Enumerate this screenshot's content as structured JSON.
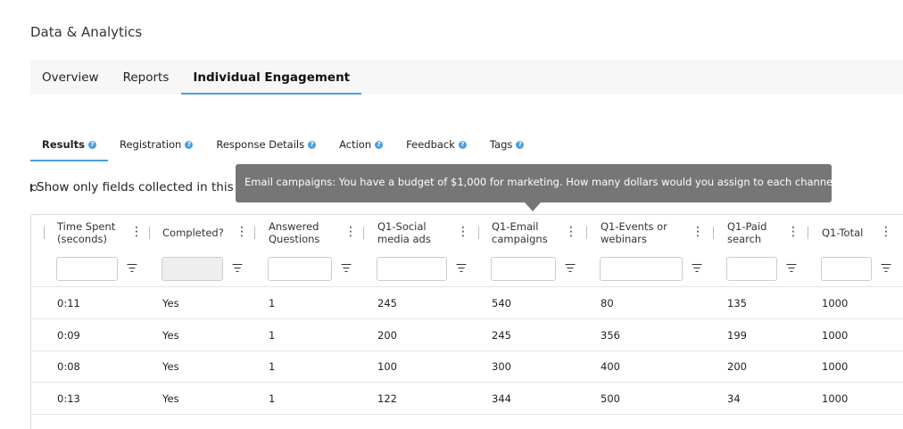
{
  "page_title": "Data & Analytics",
  "top_tabs": [
    {
      "label": "Overview",
      "active": false
    },
    {
      "label": "Reports",
      "active": false
    },
    {
      "label": "Individual Engagement",
      "active": true
    }
  ],
  "sub_tabs": [
    {
      "label": "Results",
      "active": true
    },
    {
      "label": "Registration",
      "active": false
    },
    {
      "label": "Response Details",
      "active": false
    },
    {
      "label": "Action",
      "active": false
    },
    {
      "label": "Feedback",
      "active": false
    },
    {
      "label": "Tags",
      "active": false
    }
  ],
  "toggle_label": "Show only fields collected in this i",
  "tooltip_text": "Email campaigns: You have a budget of $1,000 for marketing. How many dollars would you assign to each channel?",
  "columns": [
    {
      "label_line1": "Time Spent",
      "label_line2": "(seconds)"
    },
    {
      "label_line1": "Completed?",
      "label_line2": ""
    },
    {
      "label_line1": "Answered",
      "label_line2": "Questions"
    },
    {
      "label_line1": "Q1-Social",
      "label_line2": "media ads"
    },
    {
      "label_line1": "Q1-Email",
      "label_line2": "campaigns"
    },
    {
      "label_line1": "Q1-Events or",
      "label_line2": "webinars"
    },
    {
      "label_line1": "Q1-Paid",
      "label_line2": "search"
    },
    {
      "label_line1": "Q1-Total",
      "label_line2": ""
    }
  ],
  "rows": [
    [
      "0:11",
      "Yes",
      "1",
      "245",
      "540",
      "80",
      "135",
      "1000"
    ],
    [
      "0:09",
      "Yes",
      "1",
      "200",
      "245",
      "356",
      "199",
      "1000"
    ],
    [
      "0:08",
      "Yes",
      "1",
      "100",
      "300",
      "400",
      "200",
      "1000"
    ],
    [
      "0:13",
      "Yes",
      "1",
      "122",
      "344",
      "500",
      "34",
      "1000"
    ]
  ],
  "colors": {
    "accent": "#4a9fe0",
    "tooltip_bg": "#767676",
    "tab_bar_bg": "#f7f7f7"
  }
}
